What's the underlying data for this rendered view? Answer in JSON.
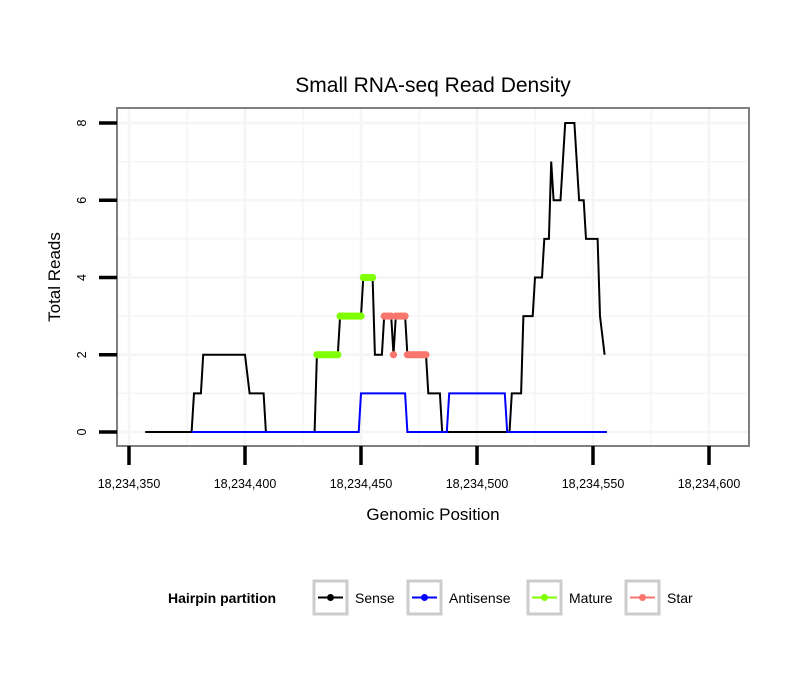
{
  "chart_data": {
    "type": "line",
    "title": "Small RNA-seq Read Density",
    "xlabel": "Genomic Position",
    "ylabel": "Total Reads",
    "xlim": [
      18234345,
      18234617
    ],
    "ylim": [
      -0.4,
      8.4
    ],
    "x_ticks": [
      18234350,
      18234400,
      18234450,
      18234500,
      18234550,
      18234600
    ],
    "x_tick_labels": [
      "18,234,350",
      "18,234,400",
      "18,234,450",
      "18,234,500",
      "18,234,550",
      "18,234,600"
    ],
    "y_ticks": [
      0,
      2,
      4,
      6,
      8
    ],
    "y_tick_labels": [
      "0",
      "2",
      "4",
      "6",
      "8"
    ],
    "grid": true,
    "legend": {
      "title": "Hairpin partition",
      "placement": "bottom",
      "entries": [
        "Sense",
        "Antisense",
        "Mature",
        "Star"
      ]
    },
    "series": [
      {
        "name": "Sense",
        "color": "#000000",
        "style": "line",
        "x": [
          18234357,
          18234377,
          18234378,
          18234381,
          18234382,
          18234400,
          18234402,
          18234408,
          18234409,
          18234430,
          18234431,
          18234440,
          18234441,
          18234450,
          18234451,
          18234455,
          18234456,
          18234459,
          18234460,
          18234463,
          18234464,
          18234465,
          18234469,
          18234470,
          18234478,
          18234479,
          18234484,
          18234485,
          18234514,
          18234515,
          18234519,
          18234520,
          18234524,
          18234525,
          18234528,
          18234529,
          18234531,
          18234532,
          18234533,
          18234536,
          18234538,
          18234542,
          18234544,
          18234546,
          18234547,
          18234552,
          18234553,
          18234555
        ],
        "y": [
          0,
          0,
          1,
          1,
          2,
          2,
          1,
          1,
          0,
          0,
          2,
          2,
          3,
          3,
          4,
          4,
          2,
          2,
          3,
          3,
          2,
          3,
          3,
          2,
          2,
          1,
          1,
          0,
          0,
          1,
          1,
          3,
          3,
          4,
          4,
          5,
          5,
          7,
          6,
          6,
          8,
          8,
          6,
          6,
          5,
          5,
          3,
          2
        ]
      },
      {
        "name": "Antisense",
        "color": "#0000ff",
        "style": "line",
        "x": [
          18234377,
          18234449,
          18234450,
          18234469,
          18234470,
          18234487,
          18234488,
          18234512,
          18234513,
          18234556
        ],
        "y": [
          0,
          0,
          1,
          1,
          0,
          0,
          1,
          1,
          0,
          0
        ]
      },
      {
        "name": "Mature",
        "color": "#7fff00",
        "style": "points",
        "x": [
          18234431,
          18234432,
          18234433,
          18234434,
          18234435,
          18234436,
          18234437,
          18234438,
          18234439,
          18234440,
          18234441,
          18234442,
          18234443,
          18234444,
          18234445,
          18234446,
          18234447,
          18234448,
          18234449,
          18234450,
          18234451,
          18234452,
          18234453,
          18234454,
          18234455
        ],
        "y": [
          2,
          2,
          2,
          2,
          2,
          2,
          2,
          2,
          2,
          2,
          3,
          3,
          3,
          3,
          3,
          3,
          3,
          3,
          3,
          3,
          4,
          4,
          4,
          4,
          4
        ]
      },
      {
        "name": "Star",
        "color": "#f8766d",
        "style": "points",
        "x": [
          18234460,
          18234461,
          18234462,
          18234463,
          18234464,
          18234465,
          18234466,
          18234467,
          18234468,
          18234469,
          18234470,
          18234471,
          18234472,
          18234473,
          18234474,
          18234475,
          18234476,
          18234477,
          18234478
        ],
        "y": [
          3,
          3,
          3,
          3,
          2,
          3,
          3,
          3,
          3,
          3,
          2,
          2,
          2,
          2,
          2,
          2,
          2,
          2,
          2
        ]
      }
    ]
  }
}
